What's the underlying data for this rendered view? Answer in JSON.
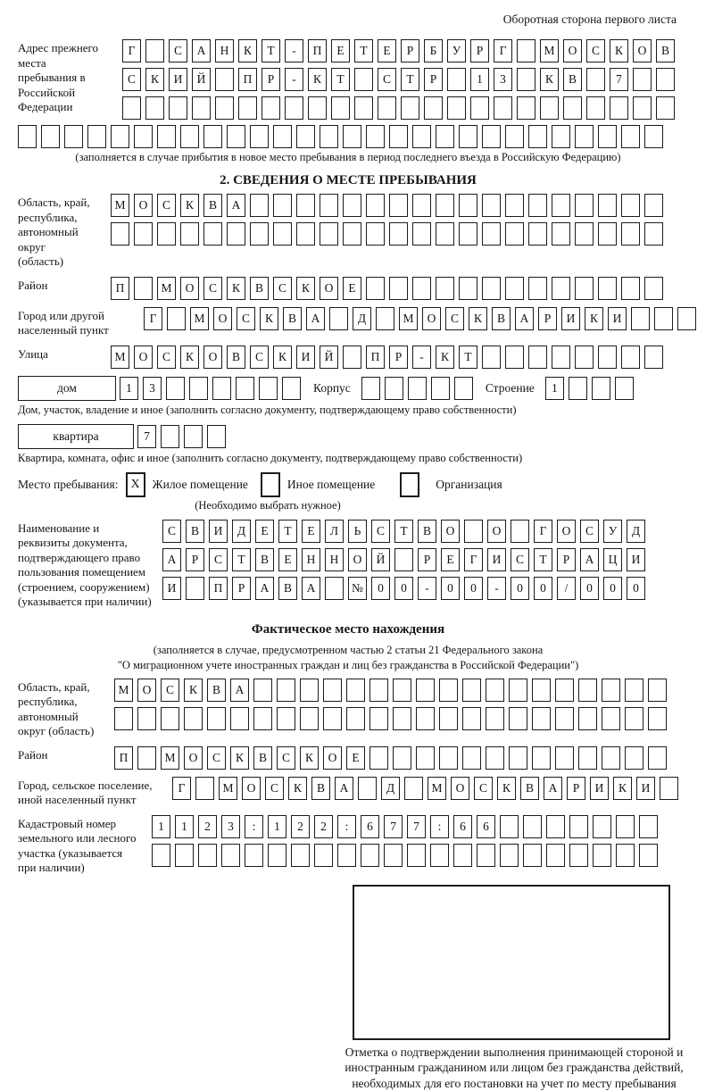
{
  "page": {
    "header_note": "Оборотная сторона первого листа"
  },
  "prev_address": {
    "label": "Адрес прежнего места пребывания в Российской Федерации",
    "row1": {
      "text": "Г САНКТ-ПЕТЕРБУРГ МОСКОВ",
      "len": 24
    },
    "row2": {
      "text": "СКИЙ ПР-КТ СТР 13 КВ 7",
      "len": 24
    },
    "row3": {
      "text": "",
      "len": 24
    },
    "row4": {
      "text": "",
      "len": 28
    },
    "note": "(заполняется в случае прибытия в новое место пребывания в период последнего въезда в Российскую Федерацию)"
  },
  "section2": {
    "title": "2. СВЕДЕНИЯ О МЕСТЕ ПРЕБЫВАНИЯ",
    "region": {
      "label": "Область, край, республика, автономный округ (область)",
      "row1": {
        "text": "МОСКВА",
        "len": 24
      },
      "row2": {
        "text": "",
        "len": 24
      }
    },
    "district": {
      "label": "Район",
      "row": {
        "text": "П МОСКВСКОЕ",
        "len": 24
      }
    },
    "city": {
      "label": "Город или другой населенный пункт",
      "row": {
        "text": "Г МОСКВА Д МОСКВАРИКИ",
        "len": 24
      }
    },
    "street": {
      "label": "Улица",
      "row": {
        "text": "МОСКОВСКИЙ ПР-КТ",
        "len": 24
      }
    },
    "house": {
      "box_label": "дом",
      "cells": {
        "text": "13",
        "len": 8
      },
      "korpus_label": "Корпус",
      "korpus_cells": {
        "text": "",
        "len": 5
      },
      "stroenie_label": "Строение",
      "stroenie_cells": {
        "text": "1",
        "len": 4
      },
      "note": "Дом, участок, владение и иное (заполнить согласно документу, подтверждающему право собственности)"
    },
    "apartment": {
      "box_label": "квартира",
      "cells": {
        "text": "7",
        "len": 4
      },
      "note": "Квартира, комната, офис и иное (заполнить согласно документу, подтверждающему право собственности)"
    },
    "stay_type": {
      "label": "Место пребывания:",
      "options": [
        {
          "mark": "X",
          "label": "Жилое помещение"
        },
        {
          "mark": "",
          "label": "Иное помещение"
        },
        {
          "mark": "",
          "label": "Организация"
        }
      ],
      "note": "(Необходимо выбрать нужное)"
    },
    "document": {
      "label": "Наименование и реквизиты документа, подтверждающего право пользования помещением (строением, сооружением) (указывается при наличии)",
      "row1": {
        "text": "СВИДЕТЕЛЬСТВО О ГОСУД",
        "len": 21
      },
      "row2": {
        "text": "АРСТВЕННОЙ РЕГИСТРАЦИ",
        "len": 21
      },
      "row3": {
        "text": "И ПРАВА №00-00-00/000",
        "len": 21
      }
    }
  },
  "actual_location": {
    "title": "Фактическое место нахождения",
    "note1": "(заполняется в случае, предусмотренном частью 2 статьи 21 Федерального закона",
    "note2": "\"О миграционном учете иностранных граждан и лиц без гражданства в Российской Федерации\")",
    "region": {
      "label": "Область, край, республика, автономный округ (область)",
      "row1": {
        "text": "МОСКВА",
        "len": 24
      },
      "row2": {
        "text": "",
        "len": 24
      }
    },
    "district": {
      "label": "Район",
      "row": {
        "text": "П МОСКВСКОЕ",
        "len": 24
      }
    },
    "city": {
      "label": "Город, сельское поселение, иной населенный пункт",
      "row": {
        "text": "Г МОСКВА Д МОСКВАРИКИ",
        "len": 22
      }
    },
    "cadastre": {
      "label": "Кадастровый номер земельного или лесного участка (указывается при наличии)",
      "row1": {
        "text": "1123:122:677:66",
        "len": 22
      },
      "row2": {
        "text": "",
        "len": 22
      }
    },
    "stamp_caption": "Отметка о подтверждении выполнения принимающей стороной и иностранным гражданином или лицом без гражданства действий, необходимых для его постановки на учет по месту пребывания"
  }
}
